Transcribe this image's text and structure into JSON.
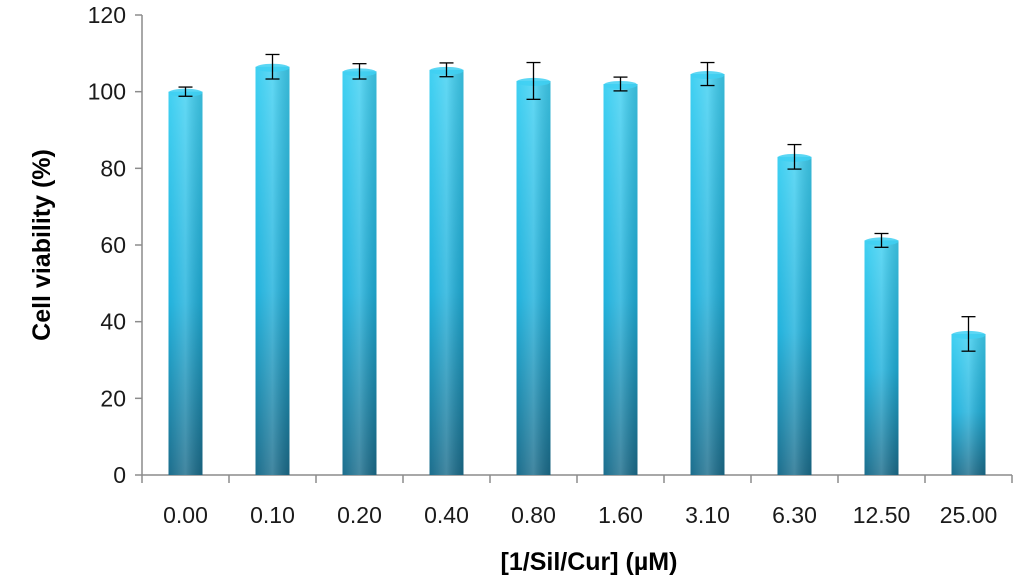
{
  "chart_data": {
    "type": "bar",
    "title": "",
    "xlabel": "[1/Sil/Cur] (µM)",
    "ylabel": "Cell viability (%)",
    "categories": [
      "0.00",
      "0.10",
      "0.20",
      "0.40",
      "0.80",
      "1.60",
      "3.10",
      "6.30",
      "12.50",
      "25.00"
    ],
    "values": [
      100,
      106.5,
      105.3,
      105.7,
      102.8,
      102.0,
      104.6,
      83.0,
      61.2,
      36.8
    ],
    "errors": [
      1.2,
      3.2,
      2.0,
      1.8,
      4.8,
      1.8,
      3.0,
      3.2,
      1.8,
      4.5
    ],
    "ylim": [
      0,
      120
    ],
    "yticks": [
      0,
      20,
      40,
      60,
      80,
      100,
      120
    ],
    "grid": false,
    "legend": "none",
    "colors": {
      "bar_light": "#3fd0f2",
      "bar_mid": "#1fb1dc",
      "bar_dark": "#1b6d8c",
      "axis": "#8c8c8c",
      "error_bar": "#000000"
    }
  }
}
